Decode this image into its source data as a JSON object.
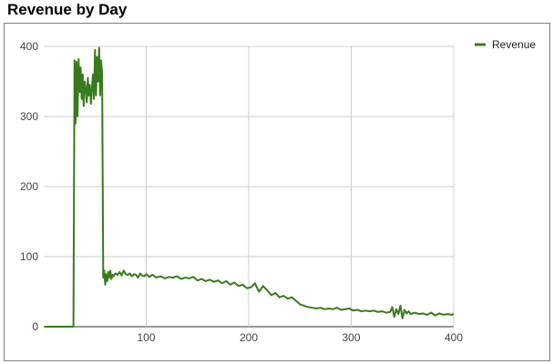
{
  "chart_data": {
    "type": "line",
    "title": "Revenue by Day",
    "xlabel": "",
    "ylabel": "",
    "xlim": [
      0,
      400
    ],
    "ylim": [
      0,
      400
    ],
    "x_ticks": [
      100,
      200,
      300,
      400
    ],
    "y_ticks": [
      0,
      100,
      200,
      300,
      400
    ],
    "grid": true,
    "legend_position": "right",
    "series": [
      {
        "name": "Revenue",
        "color": "#3a7a1e",
        "x": [
          1,
          5,
          10,
          15,
          20,
          25,
          28,
          29,
          30,
          31,
          32,
          33,
          34,
          35,
          36,
          37,
          38,
          39,
          40,
          41,
          42,
          43,
          44,
          45,
          46,
          47,
          48,
          49,
          50,
          51,
          52,
          53,
          54,
          55,
          56,
          57,
          58,
          59,
          60,
          61,
          62,
          63,
          64,
          65,
          66,
          67,
          68,
          70,
          72,
          74,
          76,
          78,
          80,
          82,
          84,
          86,
          88,
          90,
          92,
          94,
          96,
          98,
          100,
          103,
          106,
          110,
          114,
          118,
          122,
          126,
          130,
          134,
          138,
          142,
          146,
          150,
          154,
          158,
          162,
          166,
          170,
          174,
          178,
          182,
          186,
          190,
          194,
          198,
          202,
          206,
          210,
          214,
          218,
          222,
          226,
          230,
          234,
          238,
          242,
          246,
          250,
          254,
          258,
          262,
          266,
          270,
          274,
          278,
          282,
          286,
          290,
          294,
          298,
          302,
          306,
          310,
          314,
          318,
          322,
          326,
          330,
          334,
          338,
          340,
          342,
          344,
          346,
          348,
          350,
          352,
          354,
          356,
          358,
          362,
          366,
          370,
          374,
          378,
          382,
          386,
          390,
          394,
          398,
          400
        ],
        "values": [
          0,
          0,
          0,
          0,
          0,
          0,
          0,
          0,
          380,
          290,
          378,
          300,
          382,
          335,
          370,
          325,
          360,
          315,
          350,
          340,
          320,
          355,
          330,
          345,
          318,
          340,
          360,
          325,
          395,
          330,
          385,
          350,
          398,
          330,
          380,
          360,
          70,
          80,
          60,
          75,
          65,
          78,
          70,
          80,
          68,
          74,
          72,
          76,
          74,
          78,
          73,
          80,
          75,
          74,
          76,
          72,
          75,
          74,
          70,
          76,
          73,
          72,
          75,
          71,
          74,
          70,
          72,
          69,
          71,
          70,
          72,
          68,
          70,
          69,
          71,
          66,
          68,
          65,
          67,
          64,
          66,
          62,
          65,
          60,
          63,
          58,
          60,
          55,
          56,
          62,
          50,
          58,
          52,
          45,
          48,
          42,
          44,
          40,
          42,
          37,
          32,
          30,
          28,
          27,
          26,
          27,
          25,
          26,
          25,
          27,
          24,
          25,
          26,
          23,
          24,
          22,
          23,
          22,
          23,
          21,
          22,
          20,
          21,
          28,
          14,
          25,
          18,
          30,
          12,
          24,
          19,
          22,
          18,
          20,
          18,
          19,
          17,
          20,
          16,
          19,
          17,
          18,
          17,
          18
        ]
      }
    ]
  }
}
